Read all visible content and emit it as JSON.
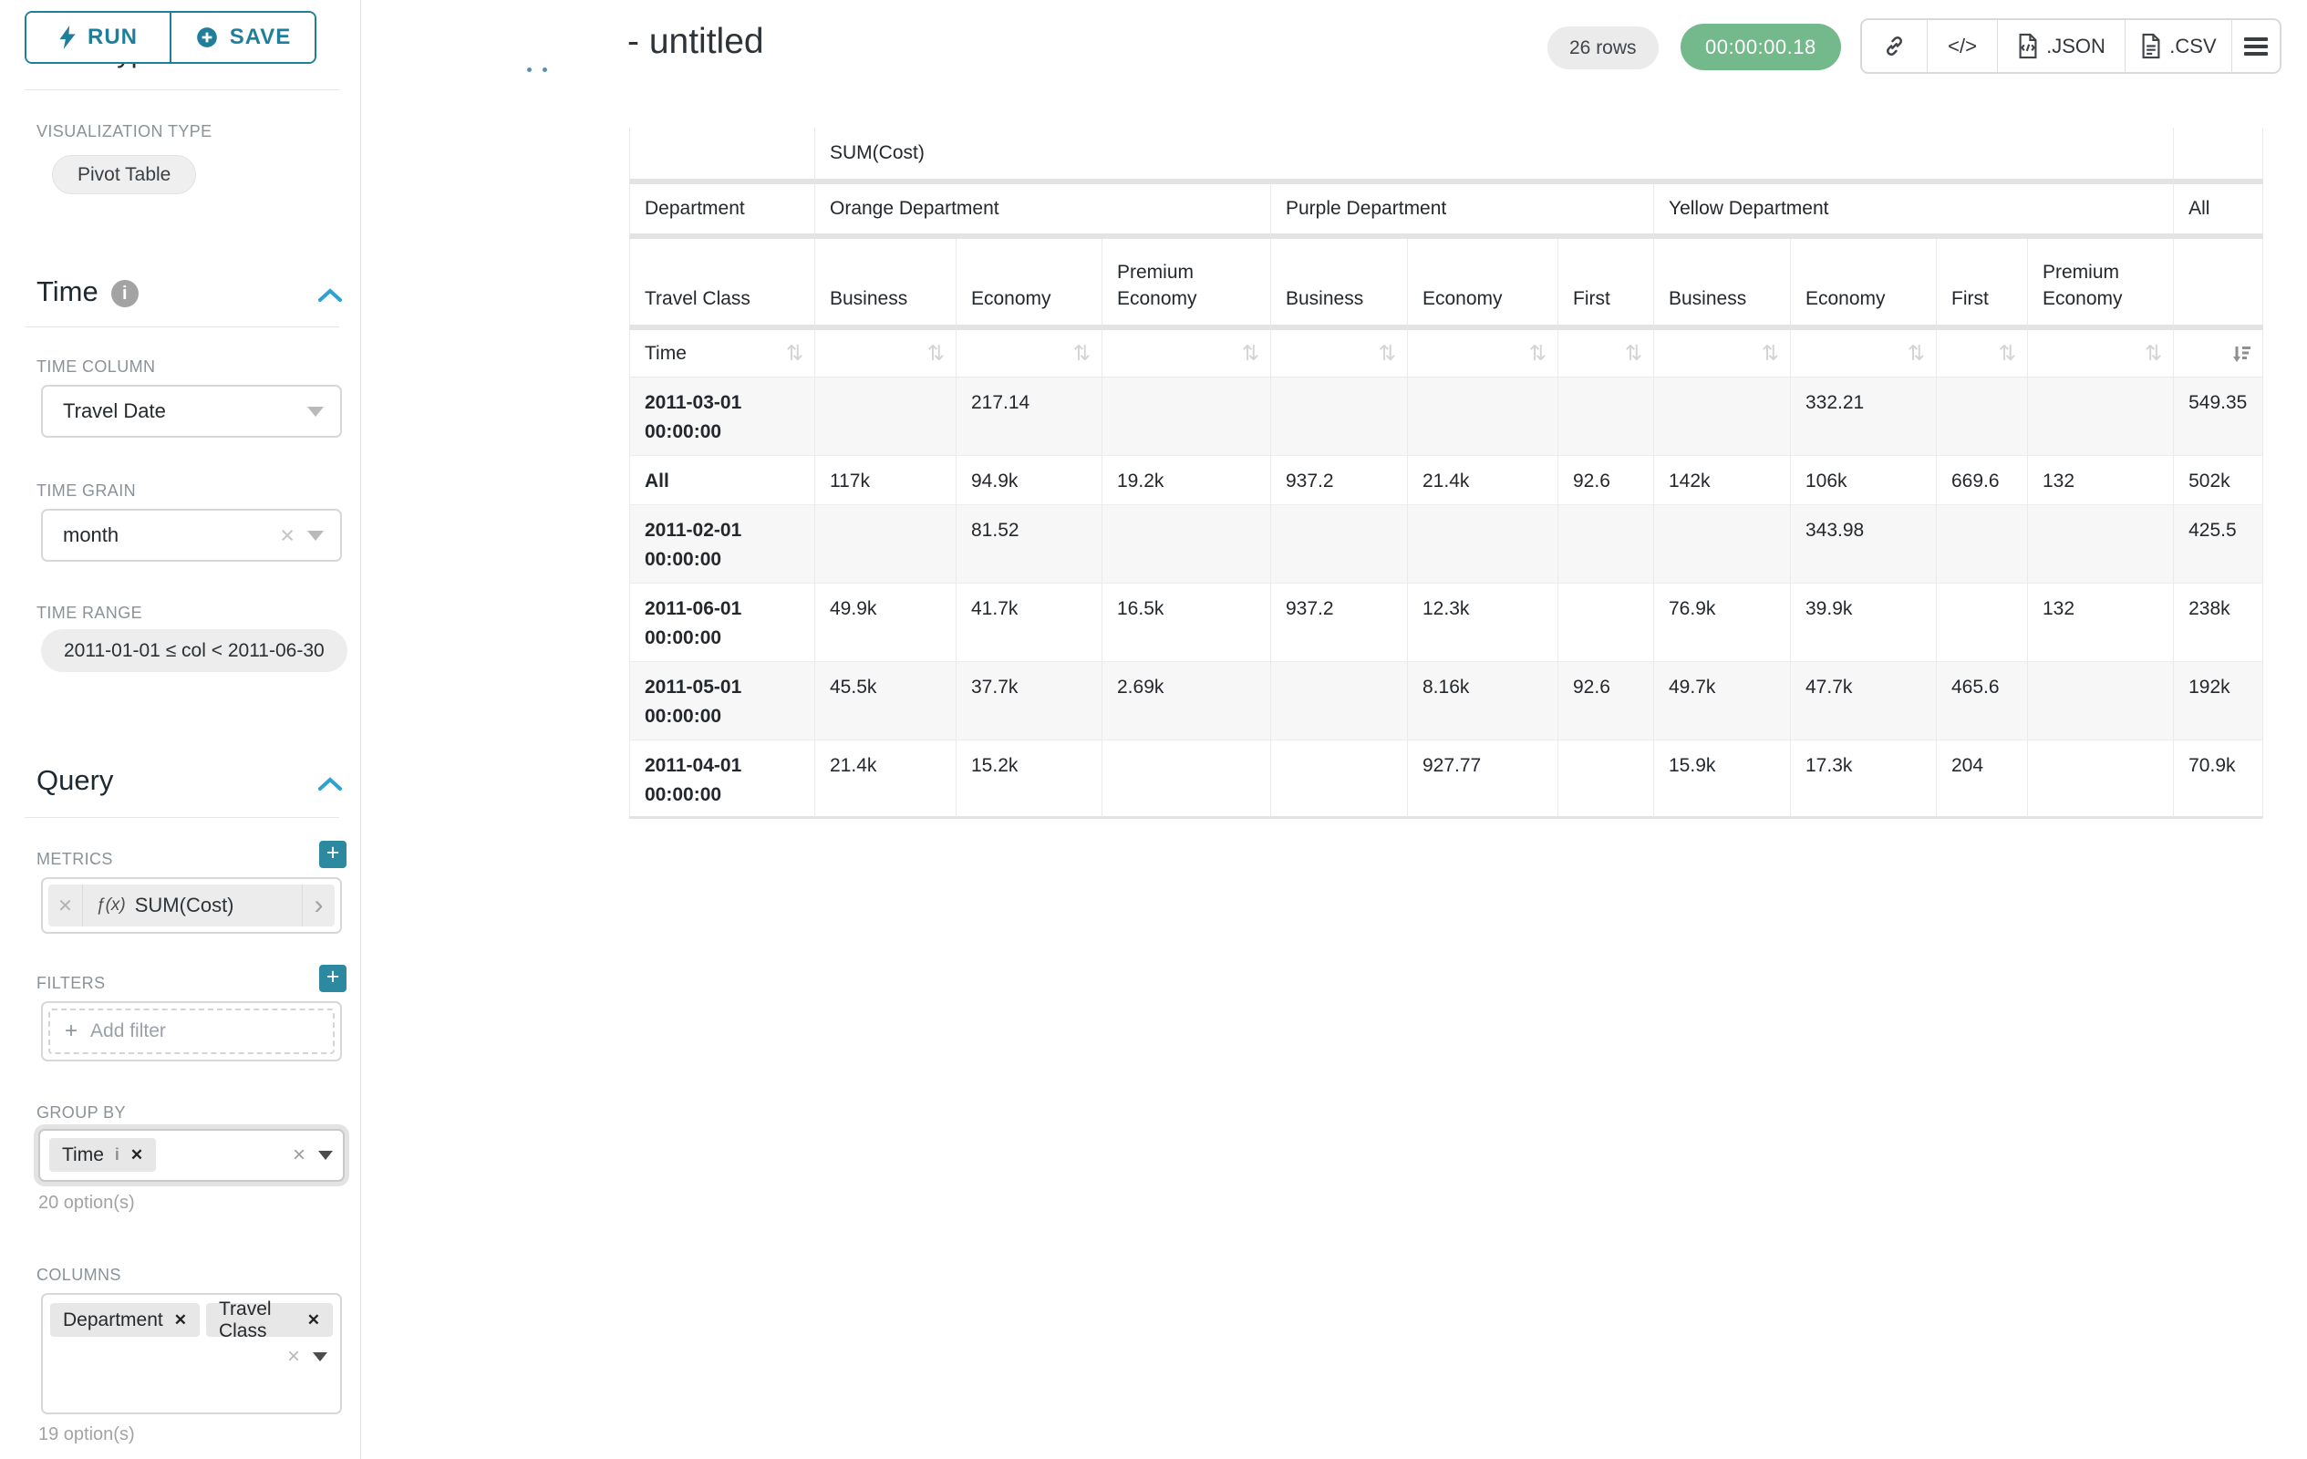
{
  "panel": {
    "run_label": "RUN",
    "save_label": "SAVE",
    "chart_type_heading": "Chart Type",
    "viz_type_label": "VISUALIZATION TYPE",
    "viz_type_value": "Pivot Table",
    "time": {
      "title": "Time",
      "column_label": "TIME COLUMN",
      "column_value": "Travel Date",
      "grain_label": "TIME GRAIN",
      "grain_value": "month",
      "range_label": "TIME RANGE",
      "range_value": "2011-01-01 ≤ col < 2011-06-30"
    },
    "query": {
      "title": "Query",
      "metrics_label": "METRICS",
      "metric_fx": "ƒ(x)",
      "metric_value": "SUM(Cost)",
      "filters_label": "FILTERS",
      "add_filter_label": "Add filter",
      "group_by_label": "GROUP BY",
      "group_by_tags": [
        "Time"
      ],
      "group_by_hint": "20 option(s)",
      "columns_label": "COLUMNS",
      "columns_tags": [
        "Department",
        "Travel Class"
      ],
      "columns_hint": "19 option(s)"
    }
  },
  "header": {
    "title": "- untitled",
    "rows_badge": "26 rows",
    "timer_badge": "00:00:00.18",
    "code_glyph": "</>",
    "json_label": ".JSON",
    "csv_label": ".CSV"
  },
  "pivot_table": {
    "metric_header": "SUM(Cost)",
    "department_label": "Department",
    "travel_class_label": "Travel Class",
    "time_label": "Time",
    "sorted": {
      "column": "All",
      "direction": "desc"
    },
    "groups": [
      {
        "label": "Orange Department",
        "cols": [
          "Business",
          "Economy",
          "Premium Economy"
        ]
      },
      {
        "label": "Purple Department",
        "cols": [
          "Business",
          "Economy",
          "First"
        ]
      },
      {
        "label": "Yellow Department",
        "cols": [
          "Business",
          "Economy",
          "First",
          "Premium Economy"
        ]
      },
      {
        "label": "All",
        "cols": [
          ""
        ]
      }
    ],
    "rows": [
      {
        "label": "2011-03-01 00:00:00",
        "values": [
          "",
          "217.14",
          "",
          "",
          "",
          "",
          "",
          "332.21",
          "",
          "",
          "549.35"
        ]
      },
      {
        "label": "All",
        "values": [
          "117k",
          "94.9k",
          "19.2k",
          "937.2",
          "21.4k",
          "92.6",
          "142k",
          "106k",
          "669.6",
          "132",
          "502k"
        ]
      },
      {
        "label": "2011-02-01 00:00:00",
        "values": [
          "",
          "81.52",
          "",
          "",
          "",
          "",
          "",
          "343.98",
          "",
          "",
          "425.5"
        ]
      },
      {
        "label": "2011-06-01 00:00:00",
        "values": [
          "49.9k",
          "41.7k",
          "16.5k",
          "937.2",
          "12.3k",
          "",
          "76.9k",
          "39.9k",
          "",
          "132",
          "238k"
        ]
      },
      {
        "label": "2011-05-01 00:00:00",
        "values": [
          "45.5k",
          "37.7k",
          "2.69k",
          "",
          "8.16k",
          "92.6",
          "49.7k",
          "47.7k",
          "465.6",
          "",
          "192k"
        ]
      },
      {
        "label": "2011-04-01 00:00:00",
        "values": [
          "21.4k",
          "15.2k",
          "",
          "",
          "927.77",
          "",
          "15.9k",
          "17.3k",
          "204",
          "",
          "70.9k"
        ]
      }
    ]
  },
  "colors": {
    "accent_teal": "#1f7f9b",
    "chevron_blue": "#2ea2d2",
    "timer_green": "#74b98c",
    "plus_teal": "#2d89a0"
  }
}
